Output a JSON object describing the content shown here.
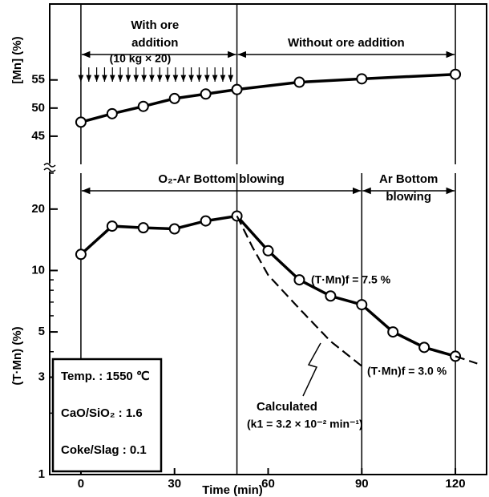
{
  "chart_data": [
    {
      "type": "line",
      "ylabel": "[Mn]  (%)",
      "xlim": [
        -10,
        130
      ],
      "ylim": [
        40,
        68.5
      ],
      "yticks": [
        45,
        50,
        55
      ],
      "vlines": [
        0,
        50,
        120
      ],
      "spans": [
        {
          "label": "With ore\naddition",
          "from": 0,
          "to": 50
        },
        {
          "label": "Without ore addition",
          "from": 50,
          "to": 120
        }
      ],
      "note": "(10 kg × 20)",
      "series": [
        {
          "color": "#000000",
          "x": [
            0,
            10,
            20,
            30,
            40,
            50,
            70,
            90,
            120
          ],
          "values": [
            47.5,
            49,
            50.3,
            51.7,
            52.5,
            53.3,
            54.6,
            55.2,
            56
          ]
        }
      ]
    },
    {
      "type": "line",
      "ylabel": "(T·Mn)  (%)",
      "xlabel": "Time   (min)",
      "log": true,
      "xlim": [
        -10,
        130
      ],
      "xticks": [
        0,
        30,
        60,
        90,
        120
      ],
      "ylim": [
        1,
        30
      ],
      "yticks": [
        1,
        3,
        5,
        10,
        20
      ],
      "vlines": [
        0,
        50,
        90,
        120
      ],
      "spans": [
        {
          "label": "O₂-Ar Bottom blowing",
          "from": 0,
          "to": 90
        },
        {
          "label": "Ar Bottom\nblowing",
          "from": 90,
          "to": 120
        }
      ],
      "annotations": [
        "(T·Mn)f = 7.5 %",
        "(T·Mn)f = 3.0 %",
        "(k1 = 3.2 × 10⁻² min⁻¹)"
      ],
      "conditions": [
        "Temp. : 1550 ℃",
        "CaO/SiO₂ : 1.6",
        "Coke/Slag : 0.1"
      ],
      "series": [
        {
          "color": "#000000",
          "x": [
            0,
            10,
            20,
            30,
            40,
            50,
            60,
            70,
            80,
            90,
            100,
            110,
            120
          ],
          "values": [
            12,
            16.5,
            16.2,
            16,
            17.5,
            18.5,
            12.5,
            9,
            7.5,
            6.8,
            5,
            4.2,
            3.8
          ]
        },
        {
          "name": "Calculated",
          "color": "#000000",
          "dash": true,
          "x": [
            50,
            55,
            60,
            70,
            80,
            90
          ],
          "values": [
            18.5,
            13,
            9.5,
            6.5,
            4.5,
            3.4
          ]
        },
        {
          "color": "#000000",
          "dash": true,
          "x": [
            120,
            127
          ],
          "values": [
            3.8,
            3.5
          ]
        }
      ]
    }
  ]
}
